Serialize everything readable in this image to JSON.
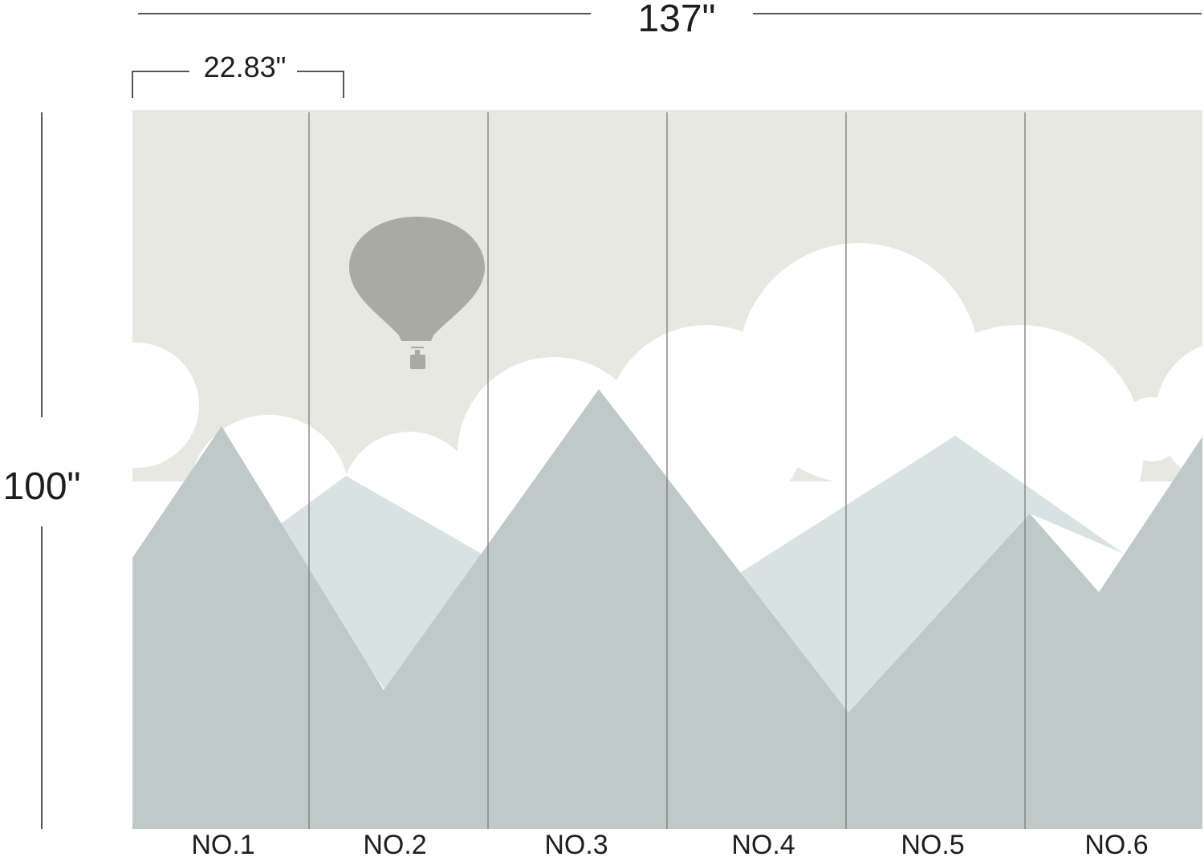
{
  "dimensions": {
    "total_width": "137\"",
    "panel_width": "22.83\"",
    "height": "100\""
  },
  "panels": [
    "NO.1",
    "NO.2",
    "NO.3",
    "NO.4",
    "NO.5",
    "NO.6"
  ],
  "colors": {
    "sky": "#e7e8e2",
    "balloon": "#a9aaa3",
    "cloud": "#ffffff",
    "mountain_front": "#bfc9c8",
    "mountain_back": "#d7e2e1",
    "panel_seam": "#7a7a7a",
    "dimension_line": "#1e1e1e"
  }
}
